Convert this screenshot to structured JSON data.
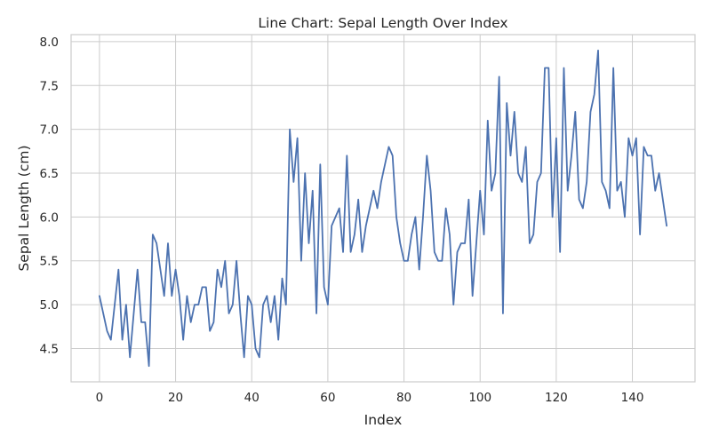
{
  "chart_data": {
    "type": "line",
    "title": "Line Chart: Sepal Length Over Index",
    "xlabel": "Index",
    "ylabel": "Sepal Length (cm)",
    "xlim": [
      -7.45,
      156.45
    ],
    "ylim": [
      4.12,
      8.08
    ],
    "xticks": [
      0,
      20,
      40,
      60,
      80,
      100,
      120,
      140
    ],
    "yticks": [
      4.5,
      5.0,
      5.5,
      6.0,
      6.5,
      7.0,
      7.5,
      8.0
    ],
    "ytick_labels": [
      "4.5",
      "5.0",
      "5.5",
      "6.0",
      "6.5",
      "7.0",
      "7.5",
      "8.0"
    ],
    "grid": true,
    "line_color": "#4c72b0",
    "series": [
      {
        "values": [
          5.1,
          4.9,
          4.7,
          4.6,
          5.0,
          5.4,
          4.6,
          5.0,
          4.4,
          4.9,
          5.4,
          4.8,
          4.8,
          4.3,
          5.8,
          5.7,
          5.4,
          5.1,
          5.7,
          5.1,
          5.4,
          5.1,
          4.6,
          5.1,
          4.8,
          5.0,
          5.0,
          5.2,
          5.2,
          4.7,
          4.8,
          5.4,
          5.2,
          5.5,
          4.9,
          5.0,
          5.5,
          4.9,
          4.4,
          5.1,
          5.0,
          4.5,
          4.4,
          5.0,
          5.1,
          4.8,
          5.1,
          4.6,
          5.3,
          5.0,
          7.0,
          6.4,
          6.9,
          5.5,
          6.5,
          5.7,
          6.3,
          4.9,
          6.6,
          5.2,
          5.0,
          5.9,
          6.0,
          6.1,
          5.6,
          6.7,
          5.6,
          5.8,
          6.2,
          5.6,
          5.9,
          6.1,
          6.3,
          6.1,
          6.4,
          6.6,
          6.8,
          6.7,
          6.0,
          5.7,
          5.5,
          5.5,
          5.8,
          6.0,
          5.4,
          6.0,
          6.7,
          6.3,
          5.6,
          5.5,
          5.5,
          6.1,
          5.8,
          5.0,
          5.6,
          5.7,
          5.7,
          6.2,
          5.1,
          5.7,
          6.3,
          5.8,
          7.1,
          6.3,
          6.5,
          7.6,
          4.9,
          7.3,
          6.7,
          7.2,
          6.5,
          6.4,
          6.8,
          5.7,
          5.8,
          6.4,
          6.5,
          7.7,
          7.7,
          6.0,
          6.9,
          5.6,
          7.7,
          6.3,
          6.7,
          7.2,
          6.2,
          6.1,
          6.4,
          7.2,
          7.4,
          7.9,
          6.4,
          6.3,
          6.1,
          7.7,
          6.3,
          6.4,
          6.0,
          6.9,
          6.7,
          6.9,
          5.8,
          6.8,
          6.7,
          6.7,
          6.3,
          6.5,
          6.2,
          5.9
        ]
      }
    ]
  }
}
